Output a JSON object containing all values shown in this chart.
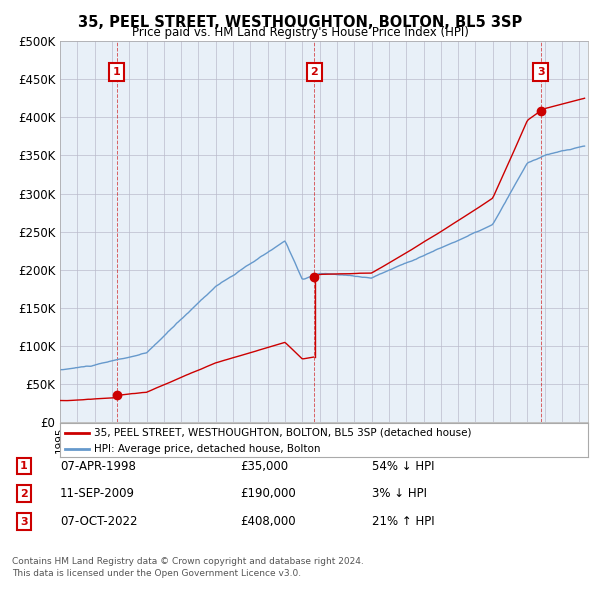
{
  "title": "35, PEEL STREET, WESTHOUGHTON, BOLTON, BL5 3SP",
  "subtitle": "Price paid vs. HM Land Registry's House Price Index (HPI)",
  "ylim": [
    0,
    500000
  ],
  "yticks": [
    0,
    50000,
    100000,
    150000,
    200000,
    250000,
    300000,
    350000,
    400000,
    450000,
    500000
  ],
  "ytick_labels": [
    "£0",
    "£50K",
    "£100K",
    "£150K",
    "£200K",
    "£250K",
    "£300K",
    "£350K",
    "£400K",
    "£450K",
    "£500K"
  ],
  "xlim_start": 1995.0,
  "xlim_end": 2025.5,
  "sale_color": "#cc0000",
  "hpi_color": "#6699cc",
  "chart_bg": "#e8f0f8",
  "sale_label": "35, PEEL STREET, WESTHOUGHTON, BOLTON, BL5 3SP (detached house)",
  "hpi_label": "HPI: Average price, detached house, Bolton",
  "transactions": [
    {
      "num": 1,
      "date_label": "07-APR-1998",
      "year": 1998.27,
      "price": 35000,
      "hpi_pct": "54% ↓ HPI"
    },
    {
      "num": 2,
      "date_label": "11-SEP-2009",
      "year": 2009.7,
      "price": 190000,
      "hpi_pct": "3% ↓ HPI"
    },
    {
      "num": 3,
      "date_label": "07-OCT-2022",
      "year": 2022.77,
      "price": 408000,
      "hpi_pct": "21% ↑ HPI"
    }
  ],
  "footer_line1": "Contains HM Land Registry data © Crown copyright and database right 2024.",
  "footer_line2": "This data is licensed under the Open Government Licence v3.0.",
  "background_color": "#ffffff",
  "grid_color": "#bbbbcc"
}
